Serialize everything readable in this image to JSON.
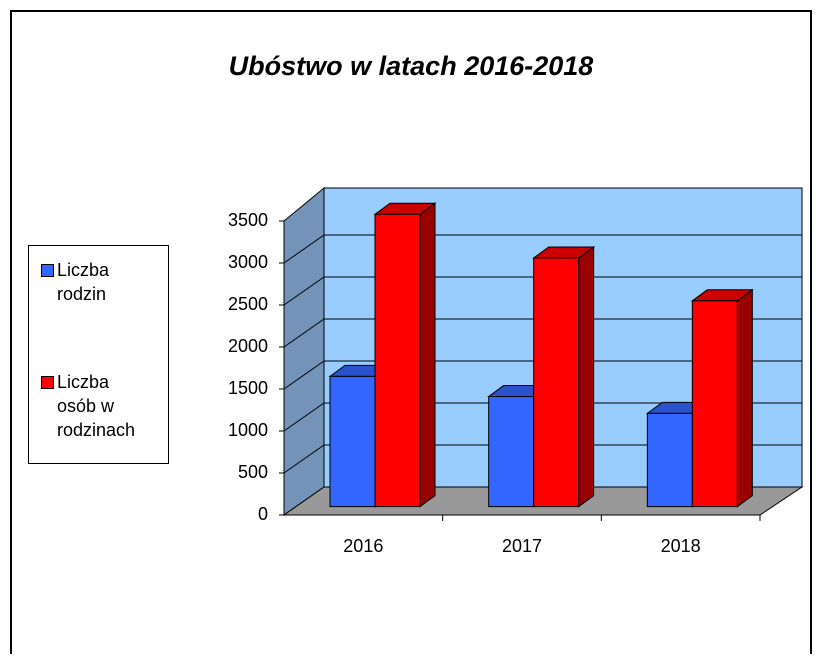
{
  "chart_data": {
    "type": "bar3d",
    "title": "Ubóstwo w latach 2016-2018",
    "categories": [
      "2016",
      "2017",
      "2018"
    ],
    "series": [
      {
        "name": "Liczba rodzin",
        "color": "#3366ff",
        "values": [
          1550,
          1310,
          1110
        ]
      },
      {
        "name": "Liczba osób w rodzinach",
        "color": "#ff0000",
        "values": [
          3480,
          2960,
          2450
        ]
      }
    ],
    "ylim": [
      0,
      3500
    ],
    "yticks": [
      0,
      500,
      1000,
      1500,
      2000,
      2500,
      3000,
      3500
    ],
    "grid": true,
    "legend": "left"
  }
}
